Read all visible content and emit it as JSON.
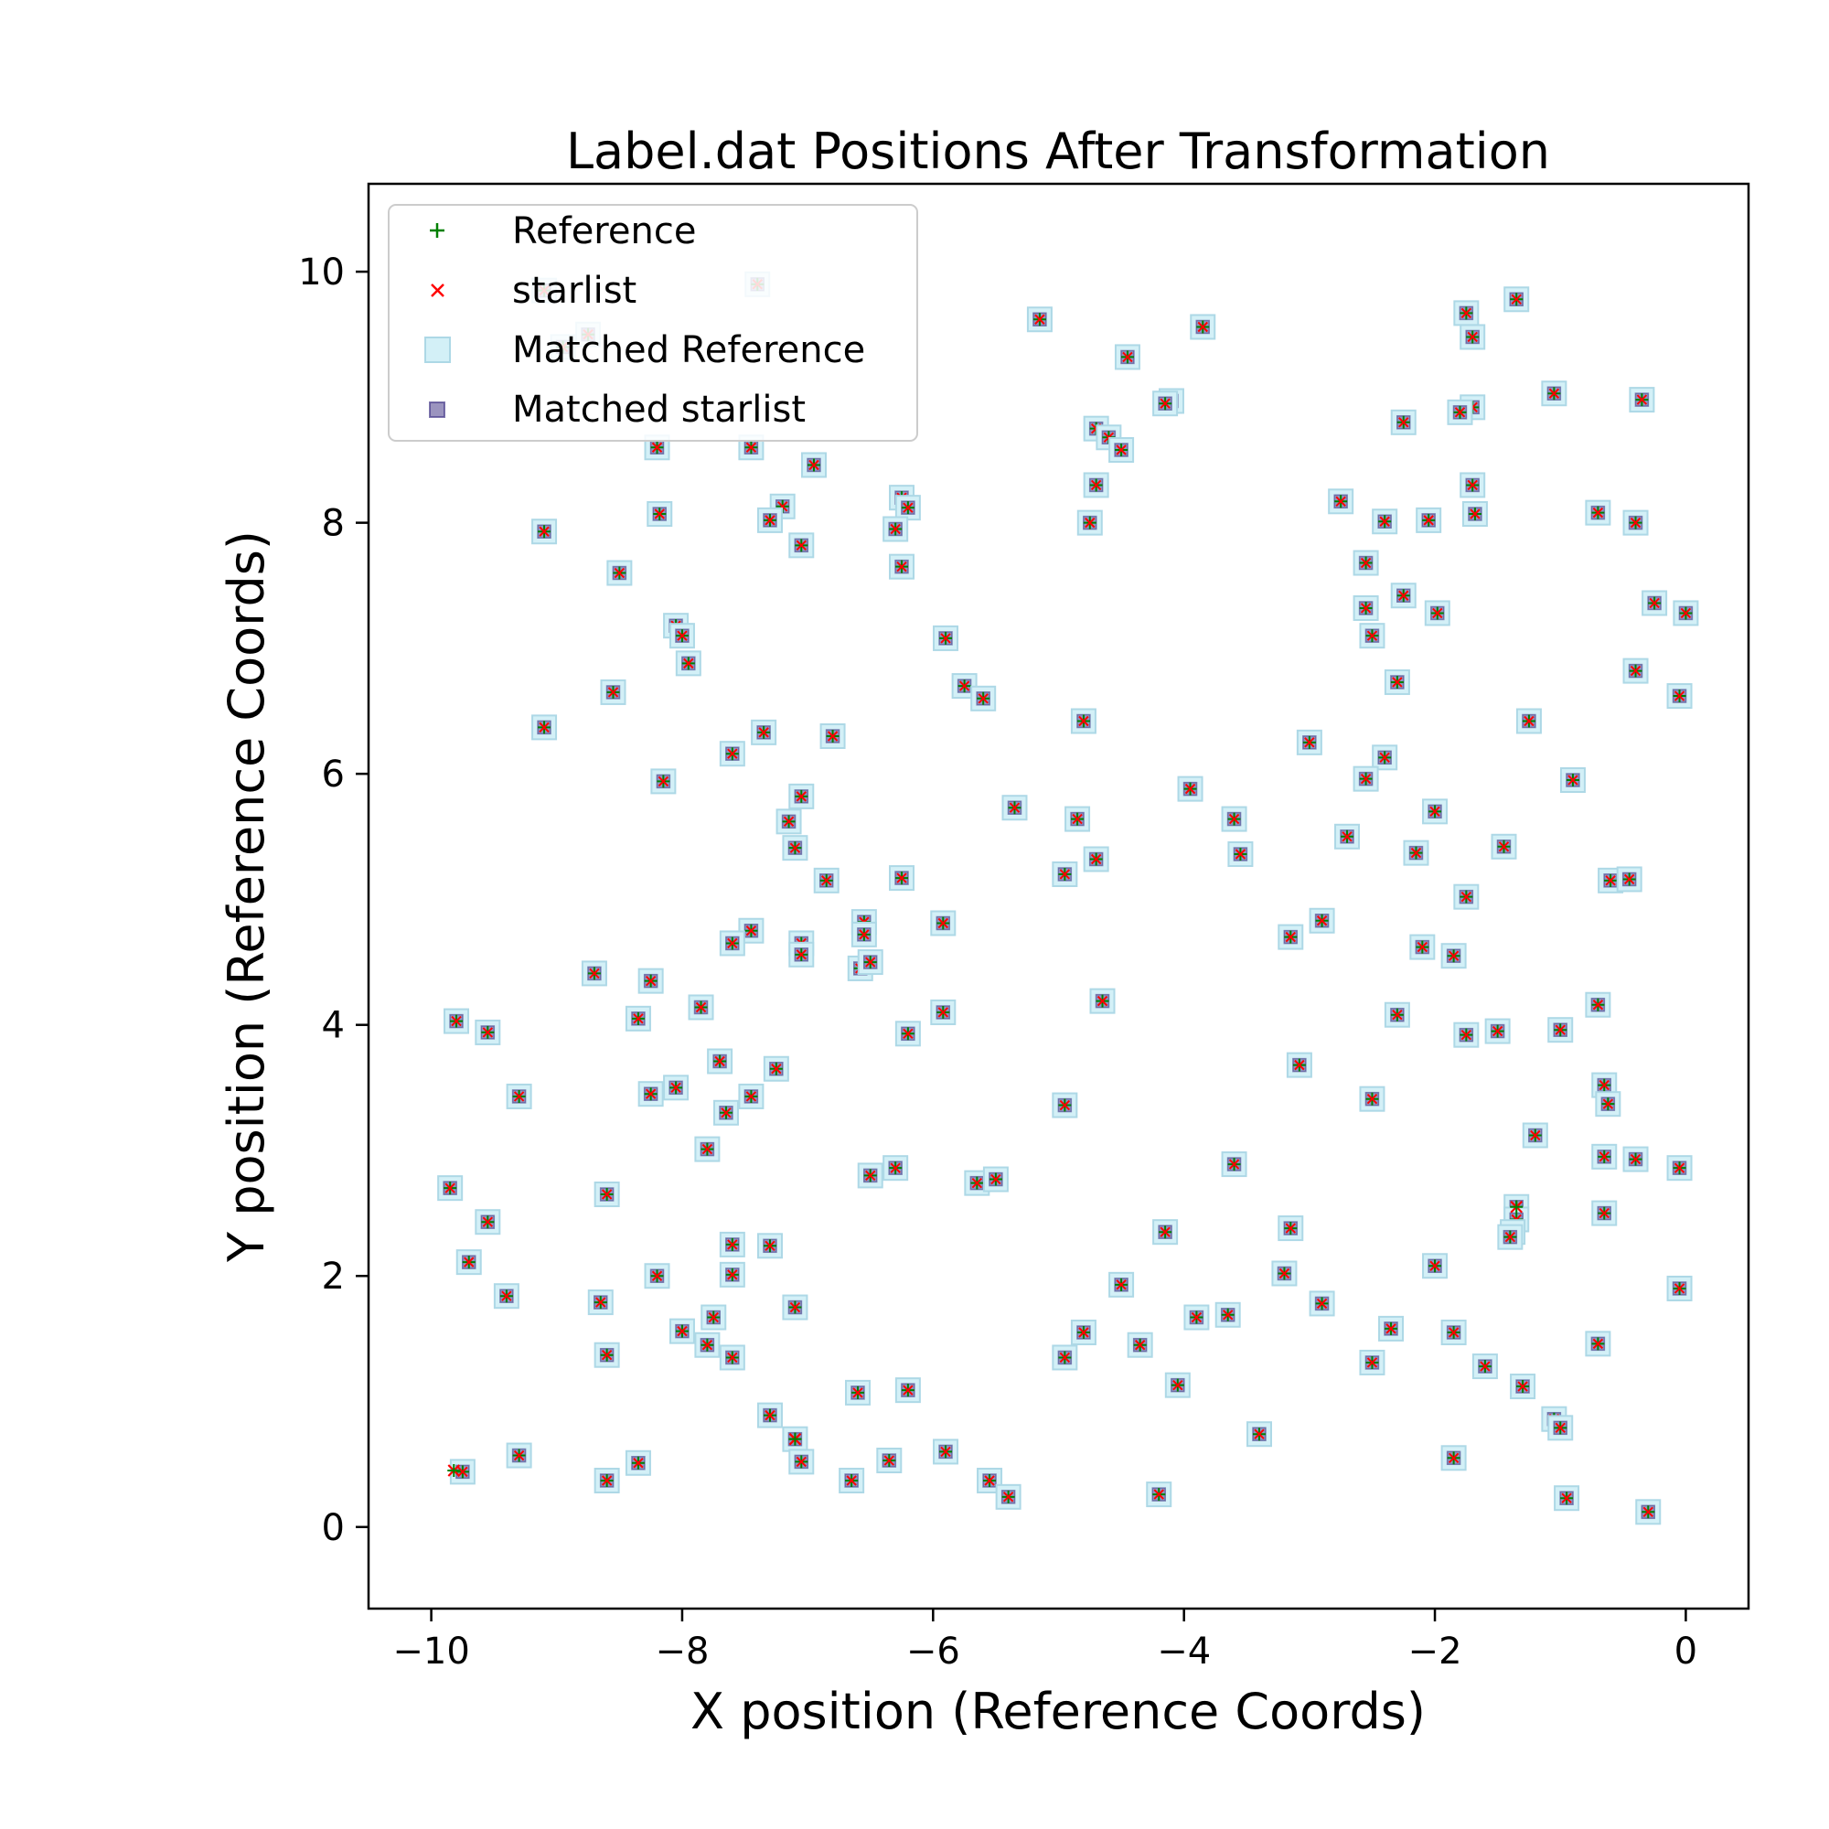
{
  "chart_data": {
    "type": "scatter",
    "title": "Label.dat Positions After Transformation",
    "xlabel": "X position (Reference Coords)",
    "ylabel": "Y position (Reference Coords)",
    "xlim": [
      -10.5,
      0.5
    ],
    "ylim": [
      -0.65,
      10.7
    ],
    "xticks": [
      -10,
      -8,
      -6,
      -4,
      -2,
      0
    ],
    "xtick_labels": [
      "−10",
      "−8",
      "−6",
      "−4",
      "−2",
      "0"
    ],
    "yticks": [
      0,
      2,
      4,
      6,
      8,
      10
    ],
    "ytick_labels": [
      "0",
      "2",
      "4",
      "6",
      "8",
      "10"
    ],
    "grid": false,
    "legend_position": "top-left",
    "colors": {
      "reference": "#008000",
      "starlist": "#ff0000",
      "matched_reference_fill": "#d3f0f7",
      "matched_reference_edge": "#add8e6",
      "matched_starlist": "#483d8b"
    },
    "series": [
      {
        "name": "Reference",
        "marker": "plus"
      },
      {
        "name": "starlist",
        "marker": "x"
      },
      {
        "name": "Matched Reference",
        "marker": "square"
      },
      {
        "name": "Matched starlist",
        "marker": "small-square"
      }
    ],
    "points": [
      [
        -9.1,
        9.85
      ],
      [
        -8.75,
        9.5
      ],
      [
        -8.95,
        9.4
      ],
      [
        -7.4,
        9.9
      ],
      [
        -5.15,
        9.62
      ],
      [
        -3.85,
        9.56
      ],
      [
        -4.45,
        9.32
      ],
      [
        -4.1,
        8.97
      ],
      [
        -4.15,
        8.95
      ],
      [
        -1.75,
        9.67
      ],
      [
        -1.35,
        9.78
      ],
      [
        -1.7,
        9.48
      ],
      [
        -1.05,
        9.03
      ],
      [
        -0.35,
        8.98
      ],
      [
        -1.7,
        8.92
      ],
      [
        -1.8,
        8.88
      ],
      [
        -2.25,
        8.8
      ],
      [
        -8.2,
        8.6
      ],
      [
        -7.45,
        8.6
      ],
      [
        -6.95,
        8.46
      ],
      [
        -4.7,
        8.75
      ],
      [
        -4.6,
        8.68
      ],
      [
        -4.5,
        8.58
      ],
      [
        -4.7,
        8.3
      ],
      [
        -6.25,
        8.2
      ],
      [
        -6.2,
        8.12
      ],
      [
        -7.2,
        8.13
      ],
      [
        -7.3,
        8.02
      ],
      [
        -8.18,
        8.07
      ],
      [
        -9.1,
        7.93
      ],
      [
        -6.3,
        7.95
      ],
      [
        -4.75,
        8.0
      ],
      [
        -2.75,
        8.17
      ],
      [
        -2.4,
        8.01
      ],
      [
        -2.05,
        8.02
      ],
      [
        -1.7,
        8.3
      ],
      [
        -1.68,
        8.07
      ],
      [
        -0.7,
        8.08
      ],
      [
        -0.4,
        8.0
      ],
      [
        -7.05,
        7.82
      ],
      [
        -6.25,
        7.65
      ],
      [
        -8.5,
        7.6
      ],
      [
        -2.55,
        7.68
      ],
      [
        -2.55,
        7.32
      ],
      [
        -2.25,
        7.42
      ],
      [
        -2.5,
        7.1
      ],
      [
        -1.98,
        7.28
      ],
      [
        -0.25,
        7.36
      ],
      [
        0.0,
        7.28
      ],
      [
        -8.05,
        7.18
      ],
      [
        -8.0,
        7.1
      ],
      [
        -7.95,
        6.88
      ],
      [
        -5.9,
        7.08
      ],
      [
        -5.75,
        6.7
      ],
      [
        -5.6,
        6.6
      ],
      [
        -8.55,
        6.65
      ],
      [
        -9.1,
        6.37
      ],
      [
        -7.35,
        6.33
      ],
      [
        -7.6,
        6.16
      ],
      [
        -6.8,
        6.3
      ],
      [
        -4.8,
        6.42
      ],
      [
        -3.0,
        6.25
      ],
      [
        -2.4,
        6.13
      ],
      [
        -2.3,
        6.73
      ],
      [
        -1.25,
        6.42
      ],
      [
        -0.4,
        6.82
      ],
      [
        -0.05,
        6.62
      ],
      [
        -8.15,
        5.94
      ],
      [
        -7.05,
        5.82
      ],
      [
        -7.15,
        5.62
      ],
      [
        -7.1,
        5.41
      ],
      [
        -6.85,
        5.15
      ],
      [
        -6.25,
        5.17
      ],
      [
        -5.35,
        5.73
      ],
      [
        -4.85,
        5.64
      ],
      [
        -4.95,
        5.2
      ],
      [
        -4.7,
        5.32
      ],
      [
        -3.95,
        5.88
      ],
      [
        -3.6,
        5.64
      ],
      [
        -3.55,
        5.36
      ],
      [
        -2.55,
        5.96
      ],
      [
        -2.7,
        5.5
      ],
      [
        -2.0,
        5.7
      ],
      [
        -2.15,
        5.37
      ],
      [
        -1.45,
        5.42
      ],
      [
        -0.9,
        5.95
      ],
      [
        -0.6,
        5.15
      ],
      [
        -0.45,
        5.16
      ],
      [
        -6.55,
        4.82
      ],
      [
        -6.55,
        4.72
      ],
      [
        -6.58,
        4.45
      ],
      [
        -6.5,
        4.5
      ],
      [
        -7.05,
        4.65
      ],
      [
        -7.05,
        4.56
      ],
      [
        -7.45,
        4.75
      ],
      [
        -7.6,
        4.65
      ],
      [
        -5.92,
        4.81
      ],
      [
        -3.15,
        4.7
      ],
      [
        -2.9,
        4.83
      ],
      [
        -1.75,
        5.02
      ],
      [
        -2.1,
        4.62
      ],
      [
        -1.85,
        4.55
      ],
      [
        -8.7,
        4.41
      ],
      [
        -8.25,
        4.35
      ],
      [
        -8.35,
        4.05
      ],
      [
        -7.85,
        4.14
      ],
      [
        -6.2,
        3.93
      ],
      [
        -5.92,
        4.1
      ],
      [
        -4.65,
        4.19
      ],
      [
        -2.3,
        4.08
      ],
      [
        -1.75,
        3.92
      ],
      [
        -1.5,
        3.95
      ],
      [
        -1.0,
        3.96
      ],
      [
        -0.7,
        4.16
      ],
      [
        -9.8,
        4.03
      ],
      [
        -9.55,
        3.94
      ],
      [
        -9.3,
        3.43
      ],
      [
        -8.25,
        3.45
      ],
      [
        -8.05,
        3.5
      ],
      [
        -7.7,
        3.71
      ],
      [
        -7.25,
        3.65
      ],
      [
        -7.45,
        3.43
      ],
      [
        -7.65,
        3.3
      ],
      [
        -7.8,
        3.01
      ],
      [
        -4.95,
        3.36
      ],
      [
        -3.08,
        3.68
      ],
      [
        -2.5,
        3.41
      ],
      [
        -0.65,
        3.52
      ],
      [
        -0.62,
        3.37
      ],
      [
        -1.2,
        3.12
      ],
      [
        -6.5,
        2.8
      ],
      [
        -6.3,
        2.86
      ],
      [
        -5.65,
        2.74
      ],
      [
        -5.5,
        2.77
      ],
      [
        -3.6,
        2.89
      ],
      [
        -0.65,
        2.95
      ],
      [
        -0.4,
        2.93
      ],
      [
        -0.05,
        2.86
      ],
      [
        -9.85,
        2.7
      ],
      [
        -8.6,
        2.65
      ],
      [
        -9.55,
        2.43
      ],
      [
        -1.35,
        2.55
      ],
      [
        -1.35,
        2.45
      ],
      [
        -1.38,
        2.35
      ],
      [
        -1.4,
        2.31
      ],
      [
        -0.65,
        2.5
      ],
      [
        -9.7,
        2.11
      ],
      [
        -9.4,
        1.84
      ],
      [
        -8.2,
        2.0
      ],
      [
        -7.6,
        2.25
      ],
      [
        -7.6,
        2.01
      ],
      [
        -7.3,
        2.24
      ],
      [
        -7.1,
        1.75
      ],
      [
        -8.65,
        1.79
      ],
      [
        -8.0,
        1.56
      ],
      [
        -7.75,
        1.67
      ],
      [
        -7.8,
        1.45
      ],
      [
        -7.6,
        1.35
      ],
      [
        -8.6,
        1.37
      ],
      [
        -4.15,
        2.35
      ],
      [
        -3.15,
        2.38
      ],
      [
        -3.2,
        2.02
      ],
      [
        -2.9,
        1.78
      ],
      [
        -2.0,
        2.08
      ],
      [
        -4.5,
        1.93
      ],
      [
        -4.8,
        1.55
      ],
      [
        -4.95,
        1.35
      ],
      [
        -4.35,
        1.45
      ],
      [
        -3.9,
        1.67
      ],
      [
        -3.65,
        1.69
      ],
      [
        -2.35,
        1.58
      ],
      [
        -1.85,
        1.55
      ],
      [
        -2.5,
        1.31
      ],
      [
        -1.6,
        1.28
      ],
      [
        -0.7,
        1.46
      ],
      [
        -0.05,
        1.9
      ],
      [
        -7.3,
        0.89
      ],
      [
        -7.1,
        0.7
      ],
      [
        -7.05,
        0.52
      ],
      [
        -6.6,
        1.07
      ],
      [
        -6.2,
        1.09
      ],
      [
        -5.9,
        0.6
      ],
      [
        -6.35,
        0.53
      ],
      [
        -6.65,
        0.37
      ],
      [
        -5.55,
        0.37
      ],
      [
        -5.4,
        0.24
      ],
      [
        -4.05,
        1.13
      ],
      [
        -3.4,
        0.74
      ],
      [
        -4.2,
        0.26
      ],
      [
        -1.3,
        1.12
      ],
      [
        -1.05,
        0.86
      ],
      [
        -1.0,
        0.79
      ],
      [
        -1.85,
        0.55
      ],
      [
        -0.95,
        0.23
      ],
      [
        -0.3,
        0.12
      ],
      [
        -9.75,
        0.44
      ],
      [
        -9.3,
        0.57
      ],
      [
        -8.6,
        0.37
      ],
      [
        -8.35,
        0.51
      ]
    ],
    "unmatched_starlist": [
      [
        -9.82,
        0.45
      ],
      [
        -7.1,
        0.7
      ],
      [
        -1.35,
        2.55
      ]
    ]
  },
  "legend": {
    "reference_label": "Reference",
    "starlist_label": "starlist",
    "matched_reference_label": "Matched Reference",
    "matched_starlist_label": "Matched starlist"
  }
}
